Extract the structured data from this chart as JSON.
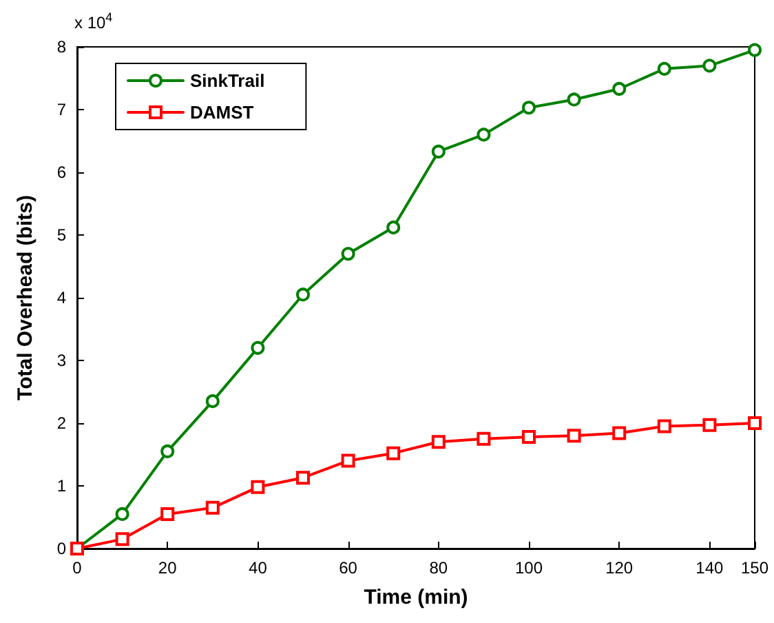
{
  "chart_data": {
    "type": "line",
    "xlabel": "Time (min)",
    "ylabel": "Total Overhead (bits)",
    "annotations": [
      "x 10$^{4}$"
    ],
    "x": [
      0,
      10,
      20,
      30,
      40,
      50,
      60,
      70,
      80,
      90,
      100,
      110,
      120,
      130,
      140,
      150
    ],
    "series": [
      {
        "name": "SinkTrail",
        "color": "#008000",
        "marker": "circle",
        "values": [
          0,
          0.55,
          1.55,
          2.35,
          3.2,
          4.05,
          4.7,
          5.12,
          6.33,
          6.6,
          7.03,
          7.16,
          7.33,
          7.65,
          7.7,
          7.95
        ]
      },
      {
        "name": "DAMST",
        "color": "#ff0000",
        "marker": "square",
        "values": [
          0,
          0.15,
          0.55,
          0.65,
          0.98,
          1.13,
          1.4,
          1.52,
          1.7,
          1.75,
          1.78,
          1.8,
          1.84,
          1.95,
          1.97,
          2.0
        ]
      }
    ],
    "xlim": [
      0,
      150
    ],
    "xticks": [
      0,
      20,
      40,
      60,
      80,
      100,
      120,
      140,
      150
    ],
    "ylim": [
      0,
      8
    ],
    "yticks": [
      0,
      1,
      2,
      3,
      4,
      5,
      6,
      7,
      8
    ],
    "grid": false,
    "legend": "top left",
    "line_style": "solid"
  }
}
